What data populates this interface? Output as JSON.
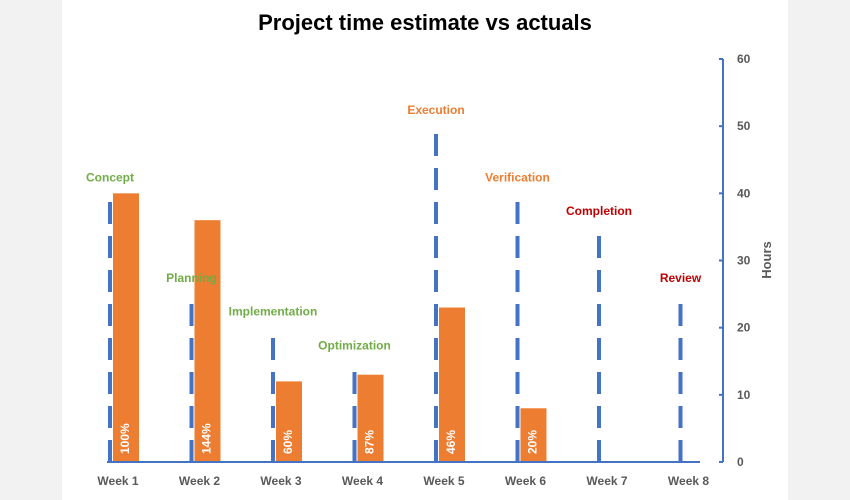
{
  "chart_data": {
    "type": "bar",
    "title": "Project time estimate vs actuals",
    "xlabel": "",
    "ylabel": "Hours",
    "ylim": [
      0,
      60
    ],
    "yticks": [
      0,
      10,
      20,
      30,
      40,
      50,
      60
    ],
    "y_axis_side": "right",
    "grid": false,
    "categories": [
      "Week 1",
      "Week 2",
      "Week 3",
      "Week 4",
      "Week 5",
      "Week 6",
      "Week 7",
      "Week 8"
    ],
    "series": [
      {
        "name": "",
        "style": "dashed-line",
        "values": [
          40,
          25,
          20,
          15,
          50,
          40,
          35,
          25
        ]
      },
      {
        "name": "",
        "style": "bar",
        "values": [
          40,
          36,
          12,
          13,
          23,
          8,
          null,
          null
        ]
      }
    ],
    "phase_labels": [
      "Concept",
      "Planning",
      "Implementation",
      "Optimization",
      "Execution",
      "Verification",
      "Completion",
      "Review"
    ],
    "percent_labels": [
      "100%",
      "144%",
      "60%",
      "87%",
      "46%",
      "20%",
      "",
      ""
    ],
    "label_colors": [
      "#70ad47",
      "#70ad47",
      "#70ad47",
      "#70ad47",
      "#ed7d31",
      "#ed7d31",
      "#c00000",
      "#c00000"
    ],
    "colors": {
      "estimate": "#4472c4",
      "actual": "#ed7d31",
      "axis": "#4472c4"
    }
  }
}
